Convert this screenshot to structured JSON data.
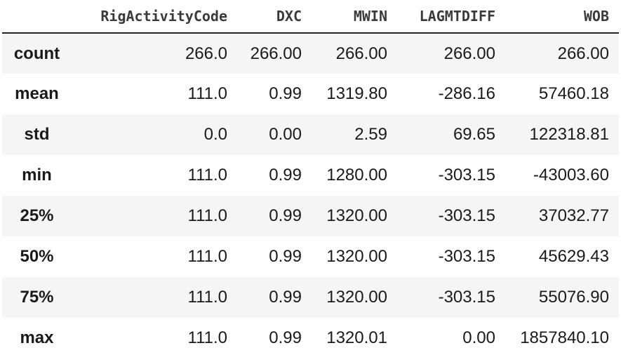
{
  "table": {
    "index_header": "",
    "columns": [
      "RigActivityCode",
      "DXC",
      "MWIN",
      "LAGMTDIFF",
      "WOB"
    ],
    "rows": [
      {
        "index": "count",
        "values": [
          "266.0",
          "266.00",
          "266.00",
          "266.00",
          "266.00"
        ]
      },
      {
        "index": "mean",
        "values": [
          "111.0",
          "0.99",
          "1319.80",
          "-286.16",
          "57460.18"
        ]
      },
      {
        "index": "std",
        "values": [
          "0.0",
          "0.00",
          "2.59",
          "69.65",
          "122318.81"
        ]
      },
      {
        "index": "min",
        "values": [
          "111.0",
          "0.99",
          "1280.00",
          "-303.15",
          "-43003.60"
        ]
      },
      {
        "index": "25%",
        "values": [
          "111.0",
          "0.99",
          "1320.00",
          "-303.15",
          "37032.77"
        ]
      },
      {
        "index": "50%",
        "values": [
          "111.0",
          "0.99",
          "1320.00",
          "-303.15",
          "45629.43"
        ]
      },
      {
        "index": "75%",
        "values": [
          "111.0",
          "0.99",
          "1320.00",
          "-303.15",
          "55076.90"
        ]
      },
      {
        "index": "max",
        "values": [
          "111.0",
          "0.99",
          "1320.01",
          "0.00",
          "1857840.10"
        ]
      }
    ]
  },
  "colors": {
    "striped_row": "#f5f5f5",
    "header_rule": "#222222",
    "text": "#1a1a1a"
  }
}
